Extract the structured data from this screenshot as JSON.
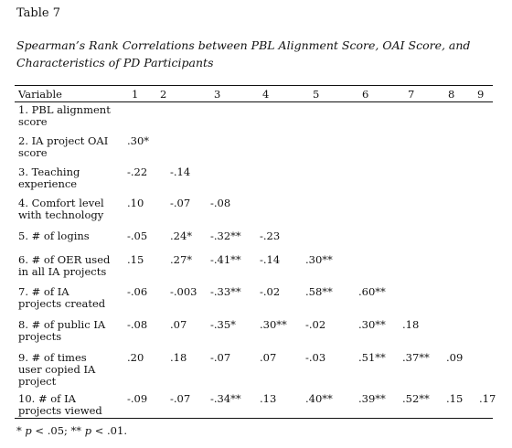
{
  "table_label": "Table 7",
  "caption": "Spearman’s Rank Correlations between PBL Alignment Score, OAI Score, and Characteristics of PD Participants",
  "header": {
    "variable": "Variable",
    "columns": [
      "1",
      "2",
      "3",
      "4",
      "5",
      "6",
      "7",
      "8",
      "9"
    ]
  },
  "rows": [
    {
      "label": [
        "1. PBL alignment",
        "score"
      ],
      "values": []
    },
    {
      "label": [
        "2. IA project OAI",
        "score"
      ],
      "values": [
        ".30*"
      ]
    },
    {
      "label": [
        "3. Teaching",
        "experience"
      ],
      "values": [
        "-.22",
        "-.14"
      ]
    },
    {
      "label": [
        "4. Comfort level",
        "with technology"
      ],
      "values": [
        ".10",
        "-.07",
        "-.08"
      ]
    },
    {
      "label": [
        "5. # of logins"
      ],
      "values": [
        "-.05",
        ".24*",
        "-.32**",
        "-.23"
      ]
    },
    {
      "label": [
        "6. # of OER used",
        "in all IA projects"
      ],
      "values": [
        ".15",
        ".27*",
        "-.41**",
        "-.14",
        ".30**"
      ]
    },
    {
      "label": [
        "7. # of IA",
        "projects created"
      ],
      "values": [
        "-.06",
        "-.003",
        "-.33**",
        "-.02",
        ".58**",
        ".60**"
      ]
    },
    {
      "label": [
        "8. # of public IA",
        "projects"
      ],
      "values": [
        "-.08",
        ".07",
        "-.35*",
        ".30**",
        "-.02",
        ".30**",
        ".18"
      ]
    },
    {
      "label": [
        "9. # of times",
        "user copied IA",
        "project"
      ],
      "values": [
        ".20",
        ".18",
        "-.07",
        ".07",
        "-.03",
        ".51**",
        ".37**",
        ".09"
      ]
    },
    {
      "label": [
        "10. # of IA",
        "projects viewed"
      ],
      "values": [
        "-.09",
        "-.07",
        "-.34**",
        ".13",
        ".40**",
        ".39**",
        ".52**",
        ".15",
        ".17"
      ]
    }
  ],
  "note": "* p < .05; ** p < .01."
}
